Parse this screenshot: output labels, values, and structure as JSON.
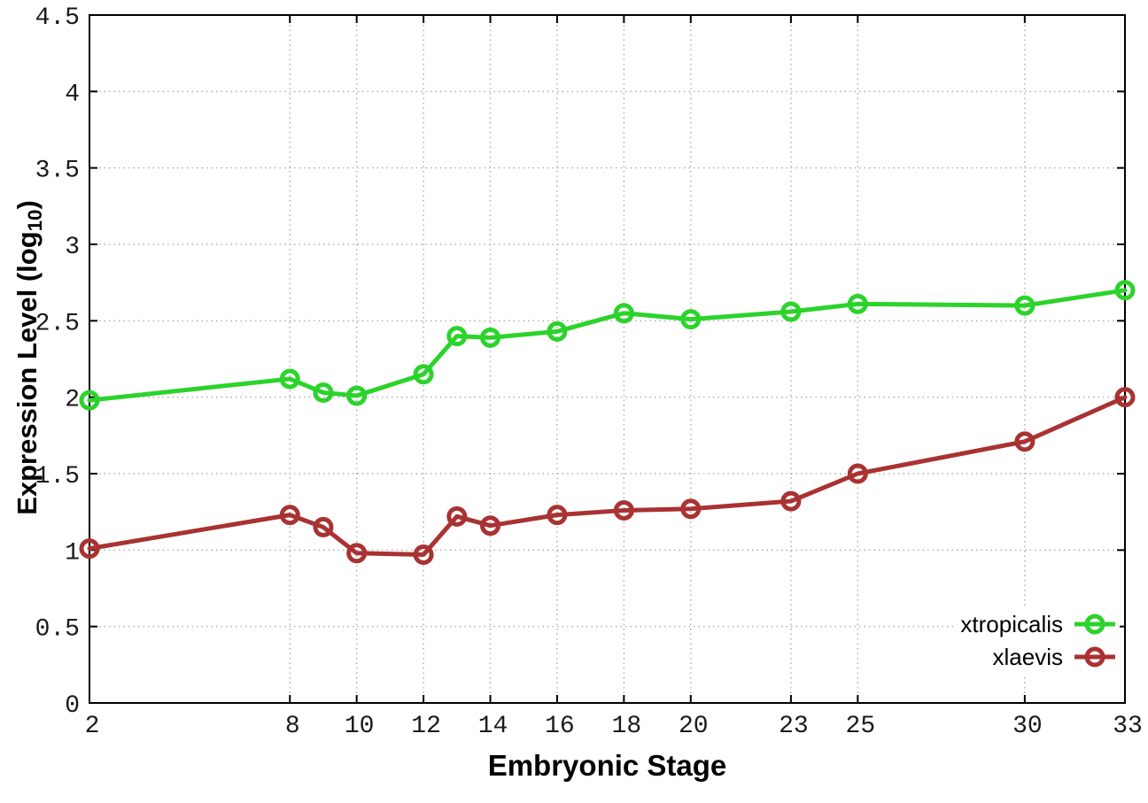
{
  "chart": {
    "x_axis_title": "Embryonic Stage",
    "y_axis_title_prefix": "Expression Level (log",
    "y_axis_title_sub": "10",
    "y_axis_title_suffix": ")",
    "border_color": "#000000",
    "grid_color": "#b0b0b0",
    "background_color": "#ffffff"
  },
  "chart_data": {
    "type": "line",
    "title": "",
    "xlabel": "Embryonic Stage",
    "ylabel": "Expression Level (log10)",
    "x": [
      2,
      8,
      9,
      10,
      12,
      13,
      14,
      16,
      18,
      20,
      23,
      25,
      30,
      33
    ],
    "series": [
      {
        "name": "xtropicalis",
        "color": "#2bd32b",
        "values": [
          1.98,
          2.12,
          2.03,
          2.01,
          2.15,
          2.4,
          2.39,
          2.43,
          2.55,
          2.51,
          2.56,
          2.61,
          2.6,
          2.7
        ]
      },
      {
        "name": "xlaevis",
        "color": "#a93232",
        "values": [
          1.01,
          1.23,
          1.15,
          0.98,
          0.97,
          1.22,
          1.16,
          1.23,
          1.26,
          1.27,
          1.32,
          1.5,
          1.71,
          2.0
        ]
      }
    ],
    "x_ticks": [
      2,
      8,
      10,
      12,
      14,
      16,
      18,
      20,
      23,
      25,
      30,
      33
    ],
    "y_ticks": [
      0,
      0.5,
      1,
      1.5,
      2,
      2.5,
      3,
      3.5,
      4,
      4.5
    ],
    "xlim": [
      2,
      33
    ],
    "ylim": [
      0,
      4.5
    ],
    "grid": true,
    "grid_style": "dotted",
    "legend_position": "bottom-right",
    "marker": "open-circle"
  }
}
